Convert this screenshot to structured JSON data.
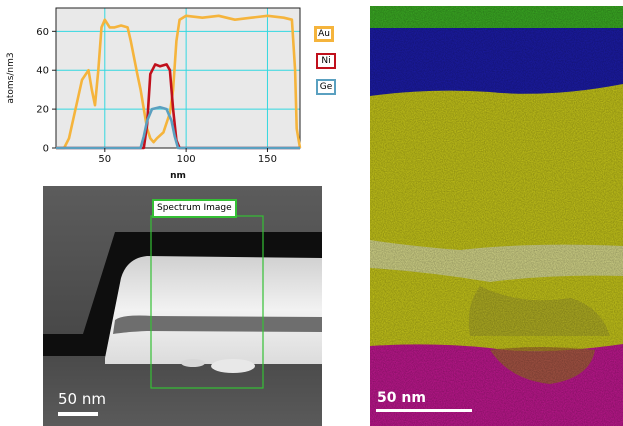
{
  "chart_data": {
    "type": "line",
    "ylabel": "atoms/nm3",
    "xlabel": "nm",
    "xlim": [
      20,
      170
    ],
    "ylim": [
      0,
      72
    ],
    "x_ticks": [
      50,
      100,
      150
    ],
    "y_ticks": [
      0,
      20,
      40,
      60
    ],
    "grid": true,
    "legend_position": "right",
    "series": [
      {
        "name": "Au",
        "color": "#f5b43c",
        "points": [
          [
            20,
            0
          ],
          [
            25,
            0
          ],
          [
            28,
            5
          ],
          [
            32,
            20
          ],
          [
            36,
            35
          ],
          [
            40,
            40
          ],
          [
            42,
            30
          ],
          [
            44,
            22
          ],
          [
            46,
            40
          ],
          [
            48,
            62
          ],
          [
            50,
            66
          ],
          [
            53,
            62
          ],
          [
            56,
            62
          ],
          [
            60,
            63
          ],
          [
            64,
            62
          ],
          [
            66,
            55
          ],
          [
            70,
            38
          ],
          [
            72,
            30
          ],
          [
            74,
            20
          ],
          [
            76,
            10
          ],
          [
            78,
            5
          ],
          [
            80,
            3
          ],
          [
            82,
            5
          ],
          [
            86,
            8
          ],
          [
            90,
            18
          ],
          [
            92,
            30
          ],
          [
            94,
            55
          ],
          [
            96,
            66
          ],
          [
            100,
            68
          ],
          [
            110,
            67
          ],
          [
            120,
            68
          ],
          [
            130,
            66
          ],
          [
            140,
            67
          ],
          [
            150,
            68
          ],
          [
            160,
            67
          ],
          [
            165,
            66
          ],
          [
            167,
            40
          ],
          [
            168,
            10
          ],
          [
            170,
            0
          ]
        ]
      },
      {
        "name": "Ni",
        "color": "#c0101c",
        "points": [
          [
            20,
            0
          ],
          [
            74,
            0
          ],
          [
            76,
            12
          ],
          [
            78,
            38
          ],
          [
            81,
            43
          ],
          [
            84,
            42
          ],
          [
            88,
            43
          ],
          [
            90,
            40
          ],
          [
            92,
            20
          ],
          [
            94,
            4
          ],
          [
            96,
            0
          ],
          [
            170,
            0
          ]
        ]
      },
      {
        "name": "Ge",
        "color": "#5aa0c0",
        "points": [
          [
            20,
            0
          ],
          [
            72,
            0
          ],
          [
            74,
            6
          ],
          [
            76,
            14
          ],
          [
            79,
            20
          ],
          [
            84,
            21
          ],
          [
            88,
            20
          ],
          [
            91,
            14
          ],
          [
            93,
            6
          ],
          [
            95,
            0
          ],
          [
            170,
            0
          ]
        ]
      }
    ]
  },
  "legend": [
    {
      "label": "Au",
      "color": "#f5b43c"
    },
    {
      "label": "Ni",
      "color": "#c0101c"
    },
    {
      "label": "Ge",
      "color": "#5aa0c0"
    }
  ],
  "stem_image": {
    "region_label": "Spectrum Image",
    "scale_label": "50 nm"
  },
  "eds_map": {
    "scale_label": "50 nm"
  }
}
